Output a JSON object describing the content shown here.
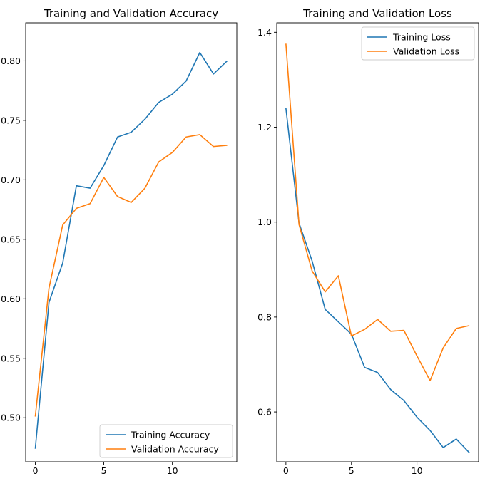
{
  "chart_data": [
    {
      "type": "line",
      "title": "Training and Validation Accuracy",
      "xlabel": "",
      "ylabel": "",
      "xlim": [
        -0.7,
        14.7
      ],
      "ylim": [
        0.463,
        0.832
      ],
      "xticks": [
        0,
        5,
        10
      ],
      "xtick_labels": [
        "0",
        "5",
        "10"
      ],
      "yticks": [
        0.5,
        0.55,
        0.6,
        0.65,
        0.7,
        0.75,
        0.8
      ],
      "ytick_labels": [
        "0.50",
        "0.55",
        "0.60",
        "0.65",
        "0.70",
        "0.75",
        "0.80"
      ],
      "legend_position": "bottom-right",
      "grid": false,
      "x": [
        0,
        1,
        2,
        3,
        4,
        5,
        6,
        7,
        8,
        9,
        10,
        11,
        12,
        13,
        14
      ],
      "series": [
        {
          "name": "Training Accuracy",
          "color": "#1f77b4",
          "values": [
            0.474,
            0.597,
            0.63,
            0.695,
            0.693,
            0.712,
            0.736,
            0.74,
            0.751,
            0.765,
            0.772,
            0.783,
            0.807,
            0.789,
            0.8
          ]
        },
        {
          "name": "Validation Accuracy",
          "color": "#ff7f0e",
          "values": [
            0.501,
            0.609,
            0.662,
            0.676,
            0.68,
            0.702,
            0.686,
            0.681,
            0.693,
            0.715,
            0.723,
            0.736,
            0.738,
            0.728,
            0.729
          ]
        }
      ]
    },
    {
      "type": "line",
      "title": "Training and Validation Loss",
      "xlabel": "",
      "ylabel": "",
      "xlim": [
        -0.7,
        14.7
      ],
      "ylim": [
        0.495,
        1.42
      ],
      "xticks": [
        0,
        5,
        10
      ],
      "xtick_labels": [
        "0",
        "5",
        "10"
      ],
      "yticks": [
        0.6,
        0.8,
        1.0,
        1.2,
        1.4
      ],
      "ytick_labels": [
        "0.6",
        "0.8",
        "1.0",
        "1.2",
        "1.4"
      ],
      "legend_position": "top-right",
      "grid": false,
      "x": [
        0,
        1,
        2,
        3,
        4,
        5,
        6,
        7,
        8,
        9,
        10,
        11,
        12,
        13,
        14
      ],
      "series": [
        {
          "name": "Training Loss",
          "color": "#1f77b4",
          "values": [
            1.24,
            0.998,
            0.918,
            0.816,
            0.79,
            0.764,
            0.694,
            0.683,
            0.647,
            0.624,
            0.589,
            0.561,
            0.525,
            0.543,
            0.514
          ]
        },
        {
          "name": "Validation Loss",
          "color": "#ff7f0e",
          "values": [
            1.376,
            0.995,
            0.897,
            0.853,
            0.887,
            0.76,
            0.774,
            0.795,
            0.77,
            0.772,
            0.718,
            0.666,
            0.735,
            0.776,
            0.782
          ]
        }
      ]
    }
  ]
}
